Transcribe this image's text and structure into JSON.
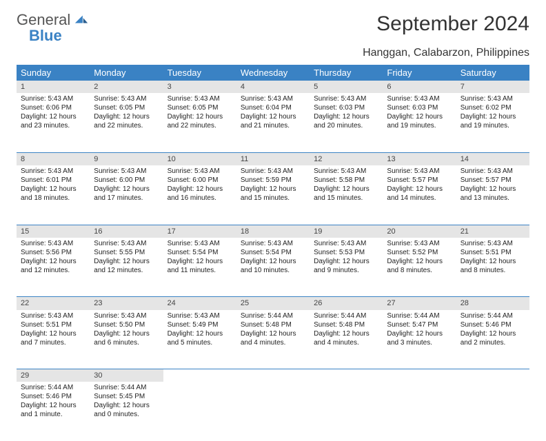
{
  "brand": {
    "part1": "General",
    "part2": "Blue"
  },
  "title": "September 2024",
  "location": "Hanggan, Calabarzon, Philippines",
  "style": {
    "accent": "#3a82c4",
    "daynum_bg": "#e5e5e5",
    "page_bg": "#ffffff",
    "text": "#222222",
    "header_fontsize": 13,
    "title_fontsize": 30,
    "cell_fontsize": 10
  },
  "weekdays": [
    "Sunday",
    "Monday",
    "Tuesday",
    "Wednesday",
    "Thursday",
    "Friday",
    "Saturday"
  ],
  "weeks": [
    [
      {
        "n": "1",
        "sr": "Sunrise: 5:43 AM",
        "ss": "Sunset: 6:06 PM",
        "dl": "Daylight: 12 hours and 23 minutes."
      },
      {
        "n": "2",
        "sr": "Sunrise: 5:43 AM",
        "ss": "Sunset: 6:05 PM",
        "dl": "Daylight: 12 hours and 22 minutes."
      },
      {
        "n": "3",
        "sr": "Sunrise: 5:43 AM",
        "ss": "Sunset: 6:05 PM",
        "dl": "Daylight: 12 hours and 22 minutes."
      },
      {
        "n": "4",
        "sr": "Sunrise: 5:43 AM",
        "ss": "Sunset: 6:04 PM",
        "dl": "Daylight: 12 hours and 21 minutes."
      },
      {
        "n": "5",
        "sr": "Sunrise: 5:43 AM",
        "ss": "Sunset: 6:03 PM",
        "dl": "Daylight: 12 hours and 20 minutes."
      },
      {
        "n": "6",
        "sr": "Sunrise: 5:43 AM",
        "ss": "Sunset: 6:03 PM",
        "dl": "Daylight: 12 hours and 19 minutes."
      },
      {
        "n": "7",
        "sr": "Sunrise: 5:43 AM",
        "ss": "Sunset: 6:02 PM",
        "dl": "Daylight: 12 hours and 19 minutes."
      }
    ],
    [
      {
        "n": "8",
        "sr": "Sunrise: 5:43 AM",
        "ss": "Sunset: 6:01 PM",
        "dl": "Daylight: 12 hours and 18 minutes."
      },
      {
        "n": "9",
        "sr": "Sunrise: 5:43 AM",
        "ss": "Sunset: 6:00 PM",
        "dl": "Daylight: 12 hours and 17 minutes."
      },
      {
        "n": "10",
        "sr": "Sunrise: 5:43 AM",
        "ss": "Sunset: 6:00 PM",
        "dl": "Daylight: 12 hours and 16 minutes."
      },
      {
        "n": "11",
        "sr": "Sunrise: 5:43 AM",
        "ss": "Sunset: 5:59 PM",
        "dl": "Daylight: 12 hours and 15 minutes."
      },
      {
        "n": "12",
        "sr": "Sunrise: 5:43 AM",
        "ss": "Sunset: 5:58 PM",
        "dl": "Daylight: 12 hours and 15 minutes."
      },
      {
        "n": "13",
        "sr": "Sunrise: 5:43 AM",
        "ss": "Sunset: 5:57 PM",
        "dl": "Daylight: 12 hours and 14 minutes."
      },
      {
        "n": "14",
        "sr": "Sunrise: 5:43 AM",
        "ss": "Sunset: 5:57 PM",
        "dl": "Daylight: 12 hours and 13 minutes."
      }
    ],
    [
      {
        "n": "15",
        "sr": "Sunrise: 5:43 AM",
        "ss": "Sunset: 5:56 PM",
        "dl": "Daylight: 12 hours and 12 minutes."
      },
      {
        "n": "16",
        "sr": "Sunrise: 5:43 AM",
        "ss": "Sunset: 5:55 PM",
        "dl": "Daylight: 12 hours and 12 minutes."
      },
      {
        "n": "17",
        "sr": "Sunrise: 5:43 AM",
        "ss": "Sunset: 5:54 PM",
        "dl": "Daylight: 12 hours and 11 minutes."
      },
      {
        "n": "18",
        "sr": "Sunrise: 5:43 AM",
        "ss": "Sunset: 5:54 PM",
        "dl": "Daylight: 12 hours and 10 minutes."
      },
      {
        "n": "19",
        "sr": "Sunrise: 5:43 AM",
        "ss": "Sunset: 5:53 PM",
        "dl": "Daylight: 12 hours and 9 minutes."
      },
      {
        "n": "20",
        "sr": "Sunrise: 5:43 AM",
        "ss": "Sunset: 5:52 PM",
        "dl": "Daylight: 12 hours and 8 minutes."
      },
      {
        "n": "21",
        "sr": "Sunrise: 5:43 AM",
        "ss": "Sunset: 5:51 PM",
        "dl": "Daylight: 12 hours and 8 minutes."
      }
    ],
    [
      {
        "n": "22",
        "sr": "Sunrise: 5:43 AM",
        "ss": "Sunset: 5:51 PM",
        "dl": "Daylight: 12 hours and 7 minutes."
      },
      {
        "n": "23",
        "sr": "Sunrise: 5:43 AM",
        "ss": "Sunset: 5:50 PM",
        "dl": "Daylight: 12 hours and 6 minutes."
      },
      {
        "n": "24",
        "sr": "Sunrise: 5:43 AM",
        "ss": "Sunset: 5:49 PM",
        "dl": "Daylight: 12 hours and 5 minutes."
      },
      {
        "n": "25",
        "sr": "Sunrise: 5:44 AM",
        "ss": "Sunset: 5:48 PM",
        "dl": "Daylight: 12 hours and 4 minutes."
      },
      {
        "n": "26",
        "sr": "Sunrise: 5:44 AM",
        "ss": "Sunset: 5:48 PM",
        "dl": "Daylight: 12 hours and 4 minutes."
      },
      {
        "n": "27",
        "sr": "Sunrise: 5:44 AM",
        "ss": "Sunset: 5:47 PM",
        "dl": "Daylight: 12 hours and 3 minutes."
      },
      {
        "n": "28",
        "sr": "Sunrise: 5:44 AM",
        "ss": "Sunset: 5:46 PM",
        "dl": "Daylight: 12 hours and 2 minutes."
      }
    ],
    [
      {
        "n": "29",
        "sr": "Sunrise: 5:44 AM",
        "ss": "Sunset: 5:46 PM",
        "dl": "Daylight: 12 hours and 1 minute."
      },
      {
        "n": "30",
        "sr": "Sunrise: 5:44 AM",
        "ss": "Sunset: 5:45 PM",
        "dl": "Daylight: 12 hours and 0 minutes."
      },
      null,
      null,
      null,
      null,
      null
    ]
  ]
}
